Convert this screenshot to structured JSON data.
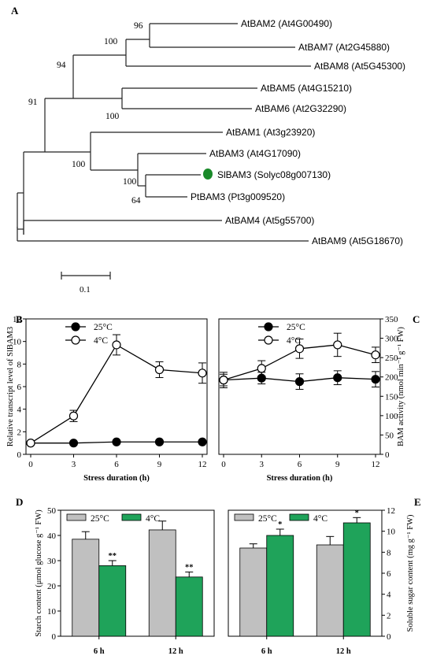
{
  "panels": {
    "A": "A",
    "B": "B",
    "C": "C",
    "D": "D",
    "E": "E"
  },
  "tree": {
    "scale_label": "0.1",
    "leaves": [
      {
        "id": "bam2",
        "label": "AtBAM2 (At4G00490)"
      },
      {
        "id": "bam7",
        "label": "AtBAM7 (At2G45880)"
      },
      {
        "id": "bam8",
        "label": "AtBAM8 (At5G45300)"
      },
      {
        "id": "bam5",
        "label": "AtBAM5 (At4G15210)"
      },
      {
        "id": "bam6",
        "label": "AtBAM6 (At2G32290)"
      },
      {
        "id": "bam1",
        "label": "AtBAM1 (At3g23920)"
      },
      {
        "id": "bam3",
        "label": "AtBAM3 (At4G17090)"
      },
      {
        "id": "slbam3",
        "label": "SlBAM3 (Solyc08g007130)",
        "marker_color": "#1a8a2a"
      },
      {
        "id": "ptbam3",
        "label": "PtBAM3 (Pt3g009520)"
      },
      {
        "id": "bam4",
        "label": "AtBAM4 (At5g55700)"
      },
      {
        "id": "bam9",
        "label": "AtBAM9 (At5G18670)"
      }
    ],
    "bootstrap": [
      "96",
      "100",
      "94",
      "100",
      "91",
      "100",
      "100",
      "64"
    ]
  },
  "chart_data": [
    {
      "panel": "B",
      "type": "line",
      "xlabel": "Stress duration (h)",
      "ylabel": "Relative transcript level of SlBAM3",
      "x": [
        0,
        3,
        6,
        9,
        12
      ],
      "xlim": [
        0,
        12
      ],
      "ylim": [
        0,
        12
      ],
      "yticks": [
        "0",
        "2",
        "4",
        "6",
        "8",
        "10",
        "12"
      ],
      "series": [
        {
          "name": "25°C",
          "marker": "filled",
          "values": [
            1.0,
            1.0,
            1.1,
            1.1,
            1.1
          ],
          "errors": [
            0.1,
            0.1,
            0.1,
            0.1,
            0.1
          ]
        },
        {
          "name": "4°C",
          "marker": "open",
          "values": [
            1.0,
            3.4,
            9.7,
            7.5,
            7.2
          ],
          "errors": [
            0.1,
            0.5,
            0.9,
            0.7,
            0.9
          ]
        }
      ]
    },
    {
      "panel": "C",
      "type": "line",
      "xlabel": "Stress duration (h)",
      "ylabel": "BAM activity (nmol min⁻¹ g⁻¹ FW)",
      "x": [
        0,
        3,
        6,
        9,
        12
      ],
      "xlim": [
        0,
        12
      ],
      "ylim": [
        0,
        350
      ],
      "yticks": [
        "0",
        "50",
        "100",
        "150",
        "200",
        "250",
        "300",
        "350"
      ],
      "series": [
        {
          "name": "25°C",
          "marker": "filled",
          "values": [
            192,
            197,
            188,
            198,
            194
          ],
          "errors": [
            15,
            15,
            20,
            18,
            20
          ]
        },
        {
          "name": "4°C",
          "marker": "open",
          "values": [
            192,
            222,
            273,
            283,
            257
          ],
          "errors": [
            20,
            20,
            25,
            30,
            20
          ]
        }
      ]
    },
    {
      "panel": "D",
      "type": "bar",
      "xlabel": "",
      "ylabel": "Starch content (μmol glucose g⁻¹ FW)",
      "categories": [
        "6 h",
        "12 h"
      ],
      "ylim": [
        0,
        50
      ],
      "yticks": [
        "0",
        "10",
        "20",
        "30",
        "40",
        "50"
      ],
      "series": [
        {
          "name": "25°C",
          "color": "#c0c0c0",
          "values": [
            38.5,
            42.2
          ],
          "errors": [
            3.0,
            3.5
          ],
          "annotations": [
            "",
            ""
          ]
        },
        {
          "name": "4°C",
          "color": "#1fa35a",
          "values": [
            28.0,
            23.5
          ],
          "errors": [
            2.0,
            2.0
          ],
          "annotations": [
            "**",
            "**"
          ]
        }
      ]
    },
    {
      "panel": "E",
      "type": "bar",
      "xlabel": "",
      "ylabel": "Soluble sugar content (mg g⁻¹ FW)",
      "categories": [
        "6 h",
        "12 h"
      ],
      "ylim": [
        0,
        12
      ],
      "yticks": [
        "0",
        "2",
        "4",
        "6",
        "8",
        "10",
        "12"
      ],
      "series": [
        {
          "name": "25°C",
          "color": "#c0c0c0",
          "values": [
            8.4,
            8.7
          ],
          "errors": [
            0.4,
            0.8
          ],
          "annotations": [
            "",
            ""
          ]
        },
        {
          "name": "4°C",
          "color": "#1fa35a",
          "values": [
            9.6,
            10.8
          ],
          "errors": [
            0.6,
            0.5
          ],
          "annotations": [
            "*",
            "*"
          ]
        }
      ]
    }
  ]
}
